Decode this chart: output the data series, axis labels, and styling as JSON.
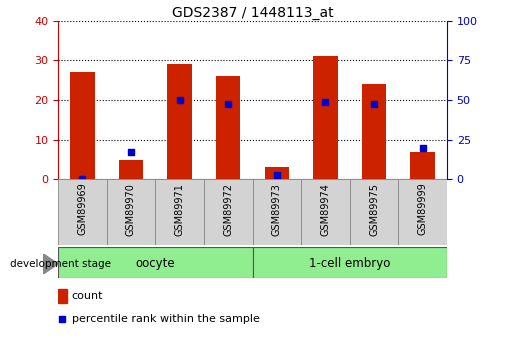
{
  "title": "GDS2387 / 1448113_at",
  "samples": [
    "GSM89969",
    "GSM89970",
    "GSM89971",
    "GSM89972",
    "GSM89973",
    "GSM89974",
    "GSM89975",
    "GSM89999"
  ],
  "counts": [
    27,
    5,
    29,
    26,
    3,
    31,
    24,
    7
  ],
  "percentiles": [
    0.5,
    17.5,
    50,
    47.5,
    2.5,
    48.75,
    47.5,
    20
  ],
  "ylim_left": [
    0,
    40
  ],
  "ylim_right": [
    0,
    100
  ],
  "yticks_left": [
    0,
    10,
    20,
    30,
    40
  ],
  "yticks_right": [
    0,
    25,
    50,
    75,
    100
  ],
  "bar_color": "#cc2200",
  "dot_color": "#0000cc",
  "bar_width": 0.5,
  "dot_size": 25,
  "background_color": "#ffffff",
  "plot_bg": "#ffffff",
  "grid_color": "#000000",
  "left_tick_color": "#cc0000",
  "right_tick_color": "#0000cc",
  "dev_stage_label": "development stage",
  "legend_count_label": "count",
  "legend_pct_label": "percentile rank within the sample",
  "group_label_1": "oocyte",
  "group_label_2": "1-cell embryo",
  "group_color": "#90ee90",
  "cell_bg": "#d3d3d3"
}
